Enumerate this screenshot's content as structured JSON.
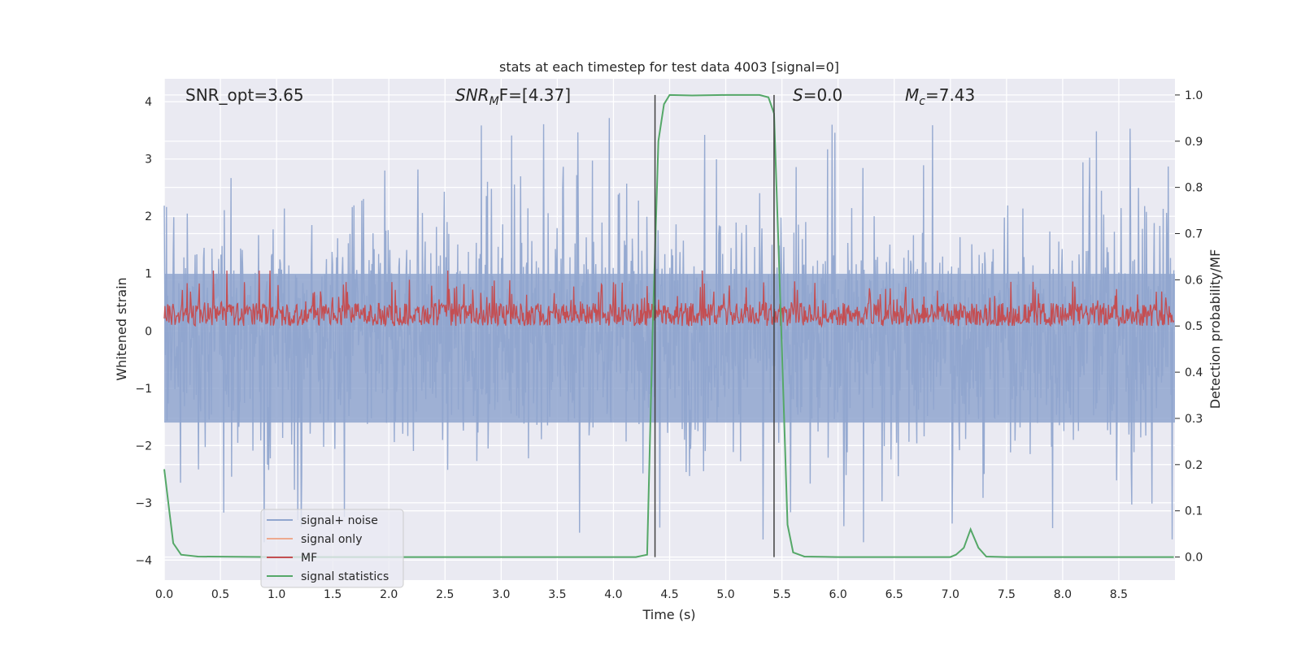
{
  "chart_data": {
    "type": "line",
    "title": "stats at each timestep for test data 4003 [signal=0]",
    "xlabel": "Time (s)",
    "ylabel_left": "Whitened strain",
    "ylabel_right": "Detection probability/MF",
    "xlim": [
      0.0,
      9.0
    ],
    "ylim_left": [
      -4.35,
      4.4
    ],
    "ylim_right": [
      -0.05,
      1.035
    ],
    "x_ticks": [
      0.0,
      0.5,
      1.0,
      1.5,
      2.0,
      2.5,
      3.0,
      3.5,
      4.0,
      4.5,
      5.0,
      5.5,
      6.0,
      6.5,
      7.0,
      7.5,
      8.0,
      8.5
    ],
    "x_tick_labels": [
      "0.0",
      "0.5",
      "1.0",
      "1.5",
      "2.0",
      "2.5",
      "3.0",
      "3.5",
      "4.0",
      "4.5",
      "5.0",
      "5.5",
      "6.0",
      "6.5",
      "7.0",
      "7.5",
      "8.0",
      "8.5"
    ],
    "y_left_ticks": [
      -4,
      -3,
      -2,
      -1,
      0,
      1,
      2,
      3,
      4
    ],
    "y_left_tick_labels": [
      "−4",
      "−3",
      "−2",
      "−1",
      "0",
      "1",
      "2",
      "3",
      "4"
    ],
    "y_right_ticks": [
      0.0,
      0.1,
      0.2,
      0.3,
      0.4,
      0.5,
      0.6,
      0.7,
      0.8,
      0.9,
      1.0
    ],
    "y_right_tick_labels": [
      "0.0",
      "0.1",
      "0.2",
      "0.3",
      "0.4",
      "0.5",
      "0.6",
      "0.7",
      "0.8",
      "0.9",
      "1.0"
    ],
    "grid": true,
    "legend_position": "lower-left",
    "annotations": {
      "snr_opt": "SNR_opt=3.65",
      "snr_mf_base": "SNR",
      "snr_mf_sub": "M",
      "snr_mf_rest": "F=[4.37]",
      "s_italic": "S",
      "s_rest": "=0.0",
      "mc_base": "M",
      "mc_sub": "c",
      "mc_rest": "=7.43"
    },
    "vertical_markers_x": [
      4.37,
      5.43
    ],
    "series": [
      {
        "name": "signal+ noise",
        "axis": "left",
        "color": "#91a6cf",
        "style": "noise",
        "description_values": {
          "amplitude_typical": 1.7,
          "peak_max": 3.75,
          "peak_min": -3.95
        }
      },
      {
        "name": "signal only",
        "axis": "left",
        "color": "#eea98f",
        "values": []
      },
      {
        "name": "MF",
        "axis": "right",
        "color": "#c44e52",
        "style": "noise",
        "description_values": {
          "baseline": 0.5,
          "typical_max": 0.6,
          "peak": 0.62
        }
      },
      {
        "name": "signal statistics",
        "axis": "right",
        "color": "#55a868",
        "x": [
          0.0,
          0.08,
          0.15,
          0.3,
          1.0,
          2.0,
          3.0,
          4.0,
          4.2,
          4.3,
          4.35,
          4.4,
          4.45,
          4.5,
          4.7,
          5.0,
          5.3,
          5.38,
          5.43,
          5.5,
          5.55,
          5.6,
          5.7,
          6.0,
          6.5,
          7.0,
          7.05,
          7.12,
          7.18,
          7.25,
          7.32,
          7.5,
          8.0,
          8.5,
          8.99
        ],
        "y": [
          0.19,
          0.03,
          0.005,
          0.001,
          0.0,
          0.0,
          0.0,
          0.0,
          0.0,
          0.005,
          0.5,
          0.9,
          0.98,
          1.0,
          0.999,
          1.0,
          1.0,
          0.995,
          0.96,
          0.45,
          0.07,
          0.01,
          0.001,
          0.0,
          0.0,
          0.0,
          0.005,
          0.02,
          0.06,
          0.02,
          0.001,
          0.0,
          0.0,
          0.0,
          0.0
        ]
      }
    ]
  },
  "legend": {
    "noise_label": "signal+ noise",
    "signal_label": "signal only",
    "mf_label": "MF",
    "stats_label": "signal statistics"
  },
  "colors": {
    "plot_bg": "#eaeaf2",
    "grid": "#ffffff",
    "noise": "#91a6cf",
    "signal": "#eea98f",
    "mf": "#c44e52",
    "stats": "#55a868",
    "marker": "#404040"
  }
}
